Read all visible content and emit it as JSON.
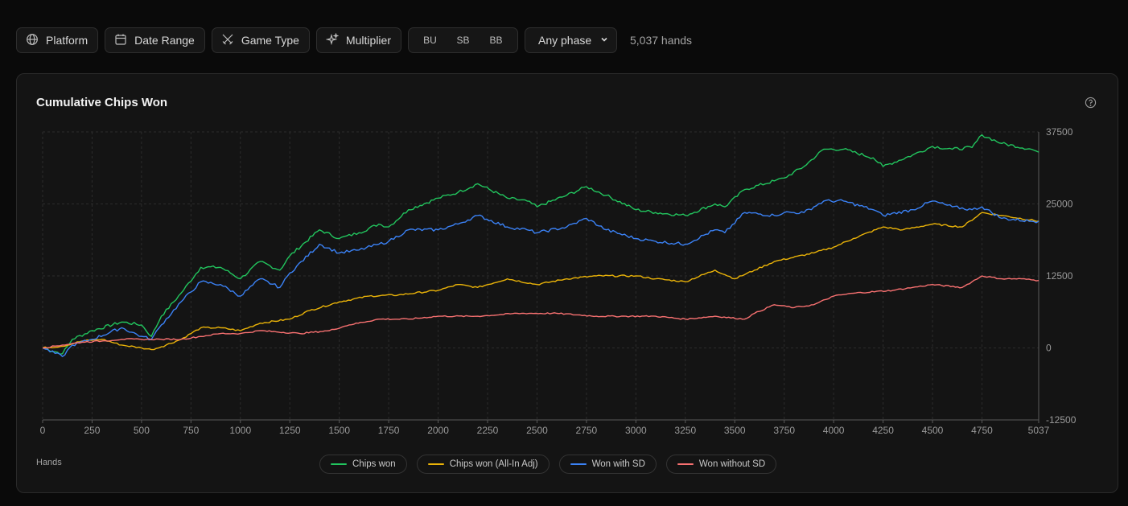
{
  "toolbar": {
    "platform_label": "Platform",
    "date_range_label": "Date Range",
    "game_type_label": "Game Type",
    "multiplier_label": "Multiplier",
    "positions": [
      "BU",
      "SB",
      "BB"
    ],
    "phase_select": "Any phase",
    "hands_count": "5,037 hands"
  },
  "card": {
    "title": "Cumulative Chips Won",
    "x_axis_label": "Hands"
  },
  "legend": [
    {
      "name": "Chips won",
      "color": "#22c55e"
    },
    {
      "name": "Chips won (All-In Adj)",
      "color": "#eab308"
    },
    {
      "name": "Won with SD",
      "color": "#3b82f6"
    },
    {
      "name": "Won without SD",
      "color": "#f87171"
    }
  ],
  "chart_data": {
    "type": "line",
    "title": "Cumulative Chips Won",
    "xlabel": "Hands",
    "ylabel": "",
    "xlim": [
      0,
      5037
    ],
    "ylim": [
      -12500,
      37500
    ],
    "x_ticks": [
      "0",
      "250",
      "500",
      "750",
      "1000",
      "1250",
      "1500",
      "1750",
      "2000",
      "2250",
      "2500",
      "2750",
      "3000",
      "3250",
      "3500",
      "3750",
      "4000",
      "4250",
      "4500",
      "4750",
      "5037"
    ],
    "y_ticks": [
      "37500",
      "25000",
      "12500",
      "0",
      "-12500"
    ],
    "grid": true,
    "legend_position": "bottom",
    "series": [
      {
        "name": "Chips won",
        "color": "#22c55e",
        "x": [
          0,
          100,
          150,
          250,
          400,
          500,
          550,
          600,
          700,
          800,
          900,
          1000,
          1100,
          1200,
          1250,
          1400,
          1500,
          1600,
          1700,
          1750,
          1850,
          2000,
          2100,
          2200,
          2350,
          2450,
          2500,
          2650,
          2750,
          2850,
          3000,
          3100,
          3250,
          3400,
          3450,
          3550,
          3700,
          3750,
          3850,
          3950,
          4050,
          4200,
          4250,
          4400,
          4500,
          4600,
          4700,
          4750,
          4850,
          5000,
          5037
        ],
        "y": [
          0,
          -1000,
          1500,
          3000,
          4500,
          4000,
          2000,
          5500,
          9500,
          14000,
          14000,
          12000,
          15000,
          13500,
          16000,
          20500,
          19000,
          20000,
          21500,
          21000,
          24000,
          26000,
          27000,
          28500,
          26000,
          25500,
          24500,
          26500,
          28000,
          26500,
          24000,
          23500,
          23000,
          25000,
          24500,
          27500,
          29000,
          29500,
          31500,
          34500,
          34500,
          33000,
          31500,
          33500,
          35000,
          34500,
          34800,
          37000,
          35500,
          34500,
          34000
        ]
      },
      {
        "name": "Chips won (All-In Adj)",
        "color": "#eab308",
        "x": [
          0,
          100,
          200,
          300,
          400,
          500,
          550,
          600,
          700,
          800,
          900,
          1000,
          1100,
          1250,
          1350,
          1500,
          1650,
          1800,
          2000,
          2100,
          2200,
          2350,
          2500,
          2650,
          2800,
          3000,
          3100,
          3250,
          3400,
          3500,
          3600,
          3700,
          3900,
          4000,
          4100,
          4250,
          4350,
          4500,
          4650,
          4750,
          4850,
          5037
        ],
        "y": [
          0,
          300,
          1200,
          1500,
          500,
          0,
          -300,
          200,
          1500,
          3500,
          3500,
          3000,
          4300,
          5000,
          6500,
          8000,
          9000,
          9200,
          10000,
          11000,
          10500,
          12000,
          11000,
          12000,
          12500,
          12500,
          12000,
          11500,
          13500,
          12000,
          13500,
          15000,
          16500,
          17500,
          19000,
          21000,
          20500,
          21500,
          21000,
          23500,
          23000,
          22000
        ]
      },
      {
        "name": "Won with SD",
        "color": "#3b82f6",
        "x": [
          0,
          100,
          150,
          250,
          400,
          500,
          550,
          600,
          700,
          800,
          900,
          1000,
          1100,
          1200,
          1250,
          1400,
          1500,
          1600,
          1700,
          1750,
          1850,
          2000,
          2100,
          2200,
          2350,
          2450,
          2500,
          2650,
          2750,
          2850,
          3000,
          3100,
          3250,
          3400,
          3450,
          3550,
          3700,
          3750,
          3850,
          3950,
          4050,
          4200,
          4250,
          4400,
          4500,
          4600,
          4700,
          4750,
          4850,
          5000,
          5037
        ],
        "y": [
          0,
          -1500,
          500,
          1500,
          3500,
          2000,
          1500,
          4000,
          8000,
          11500,
          11000,
          9000,
          12000,
          10500,
          13000,
          18000,
          16500,
          17000,
          18000,
          18500,
          20500,
          20500,
          21500,
          23000,
          21000,
          20500,
          20000,
          21000,
          22500,
          20500,
          19000,
          18500,
          18000,
          20500,
          20000,
          23500,
          23000,
          23500,
          23500,
          25500,
          25500,
          24000,
          23000,
          24000,
          25500,
          24500,
          24000,
          24500,
          22500,
          22000,
          22000
        ]
      },
      {
        "name": "Won without SD",
        "color": "#f87171",
        "x": [
          0,
          100,
          200,
          300,
          400,
          500,
          600,
          700,
          800,
          900,
          1000,
          1100,
          1300,
          1450,
          1550,
          1700,
          1850,
          2000,
          2200,
          2400,
          2600,
          2800,
          2950,
          3100,
          3250,
          3400,
          3550,
          3600,
          3700,
          3800,
          3900,
          4000,
          4100,
          4300,
          4400,
          4500,
          4650,
          4750,
          4850,
          4950,
          5037
        ],
        "y": [
          0,
          500,
          1000,
          1200,
          1500,
          1500,
          1500,
          1500,
          2000,
          2500,
          2500,
          3000,
          2500,
          3000,
          4000,
          5000,
          5000,
          5500,
          5500,
          6000,
          6000,
          5500,
          5500,
          5500,
          5000,
          5500,
          5000,
          6000,
          7500,
          7000,
          7500,
          9000,
          9500,
          10000,
          10500,
          11000,
          10500,
          12500,
          12000,
          12000,
          11700
        ]
      }
    ]
  },
  "colors": {
    "background": "#0a0a0a",
    "card": "#141414",
    "grid": "#2c2c2c"
  },
  "icons": {
    "platform": "globe-icon",
    "date_range": "calendar-icon",
    "game_type": "swords-icon",
    "multiplier": "sparkles-icon",
    "help": "help-circle-icon",
    "select": "chevron-down-icon"
  }
}
